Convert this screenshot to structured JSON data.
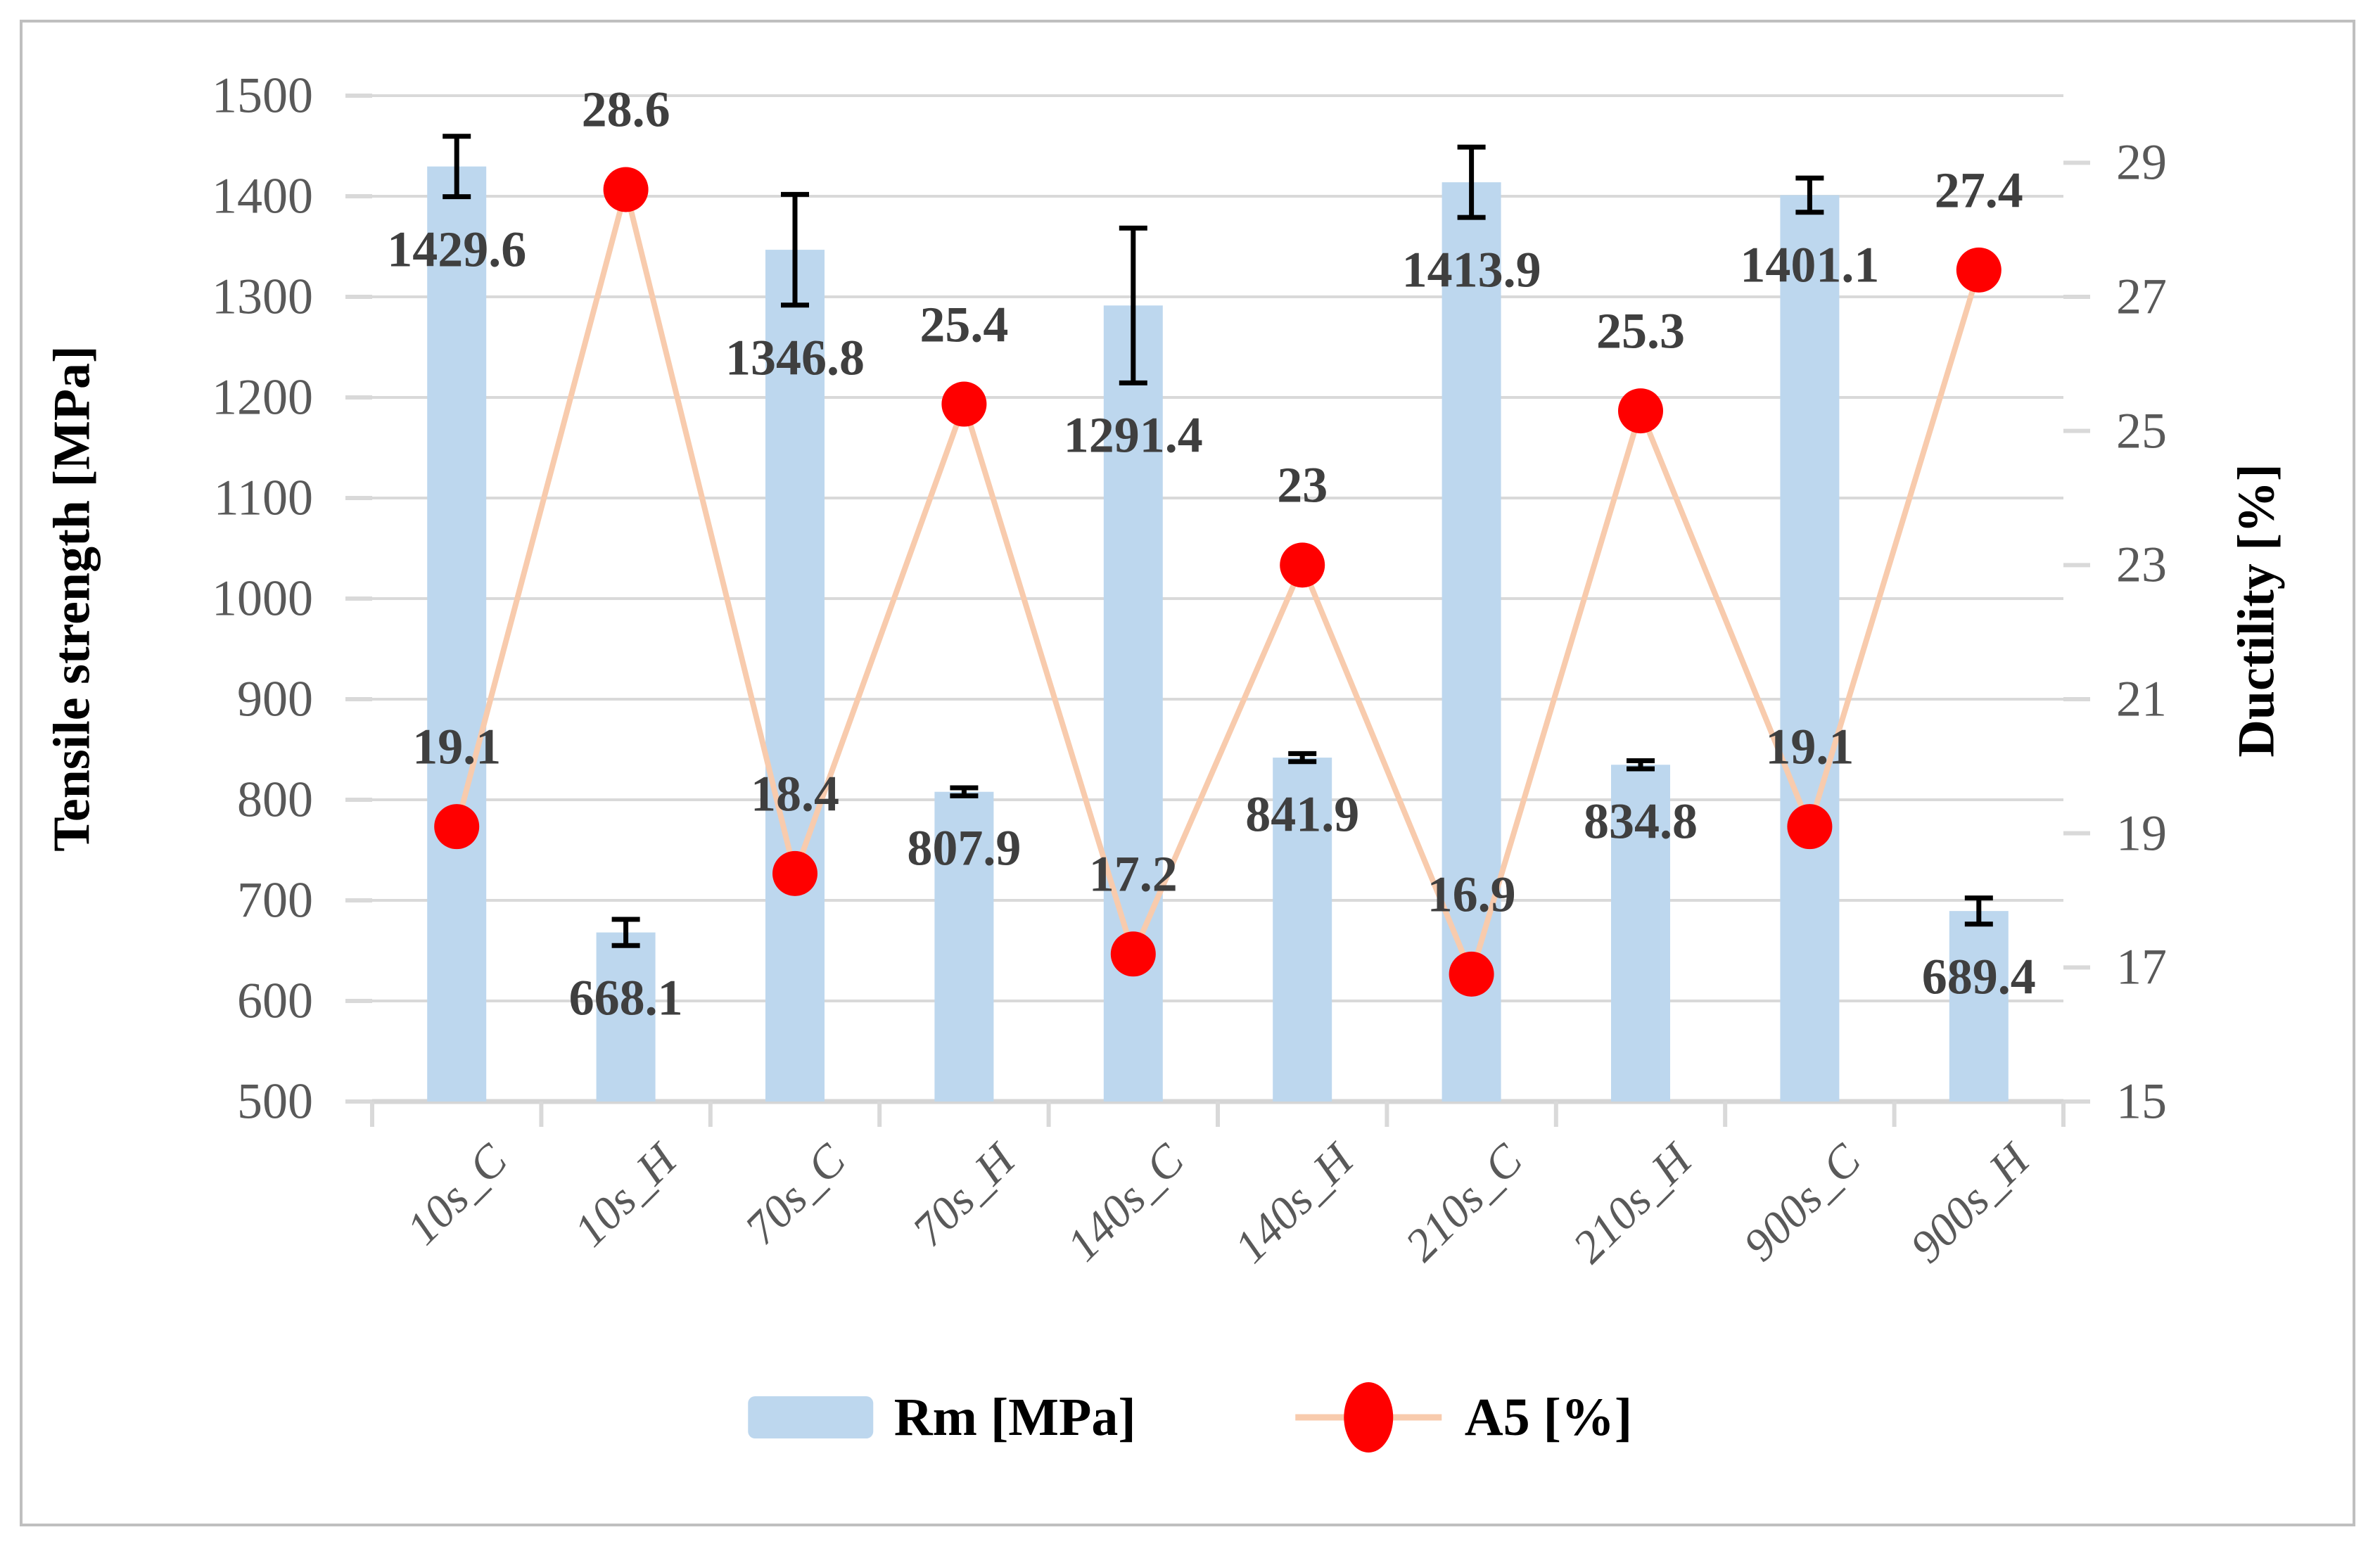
{
  "chart_data": {
    "type": "bar+line combo",
    "categories": [
      "10s_C",
      "10s_H",
      "70s_C",
      "70s_H",
      "140s_C",
      "140s_H",
      "210s_C",
      "210s_H",
      "900s_C",
      "900s_H"
    ],
    "series": [
      {
        "name": "Rm [MPa]",
        "type": "bar",
        "axis": "left",
        "values": [
          1429.6,
          668.1,
          1346.8,
          807.9,
          1291.4,
          841.9,
          1413.9,
          834.8,
          1401.1,
          689.4
        ],
        "data_labels": [
          "1429.6",
          "668.1",
          "1346.8",
          "807.9",
          "1291.4",
          "841.9",
          "1413.9",
          "834.8",
          "1401.1",
          "689.4"
        ],
        "error_bars_plus_minus": [
          30,
          13,
          55,
          4,
          77,
          4,
          35,
          4,
          17,
          13
        ],
        "color": "#bdd7ee"
      },
      {
        "name": "A5 [%]",
        "type": "line",
        "axis": "right",
        "values": [
          19.1,
          28.6,
          18.4,
          25.4,
          17.2,
          23,
          16.9,
          25.3,
          19.1,
          27.4
        ],
        "data_labels": [
          "19.1",
          "28.6",
          "18.4",
          "25.4",
          "17.2",
          "23",
          "16.9",
          "25.3",
          "19.1",
          "27.4"
        ],
        "line_color": "#f8cbad",
        "marker_color": "#ff0000"
      }
    ],
    "left_axis": {
      "title": "Tensile strength [MPa]",
      "min": 500,
      "max": 1500,
      "tick_step": 100,
      "tick_labels": [
        "500",
        "600",
        "700",
        "800",
        "900",
        "1000",
        "1100",
        "1200",
        "1300",
        "1400",
        "1500"
      ]
    },
    "right_axis": {
      "title": "Ductility [%]",
      "tick_labels": [
        "15",
        "17",
        "19",
        "21",
        "23",
        "25",
        "27",
        "29"
      ],
      "ticks": [
        15,
        17,
        19,
        21,
        23,
        25,
        27,
        29
      ],
      "scale_min": 15,
      "scale_max": 30
    },
    "grid": true,
    "legend_position": "bottom"
  },
  "colors": {
    "bar_fill": "#bdd7ee",
    "line": "#f8cbad",
    "marker": "#ff0000",
    "gridline": "#d9d9d9",
    "axis_line": "#d5d5d5",
    "tick_text": "#595959",
    "data_label_text": "#3f3f3f",
    "error_bar": "#000000",
    "border": "#bfbfbf"
  }
}
